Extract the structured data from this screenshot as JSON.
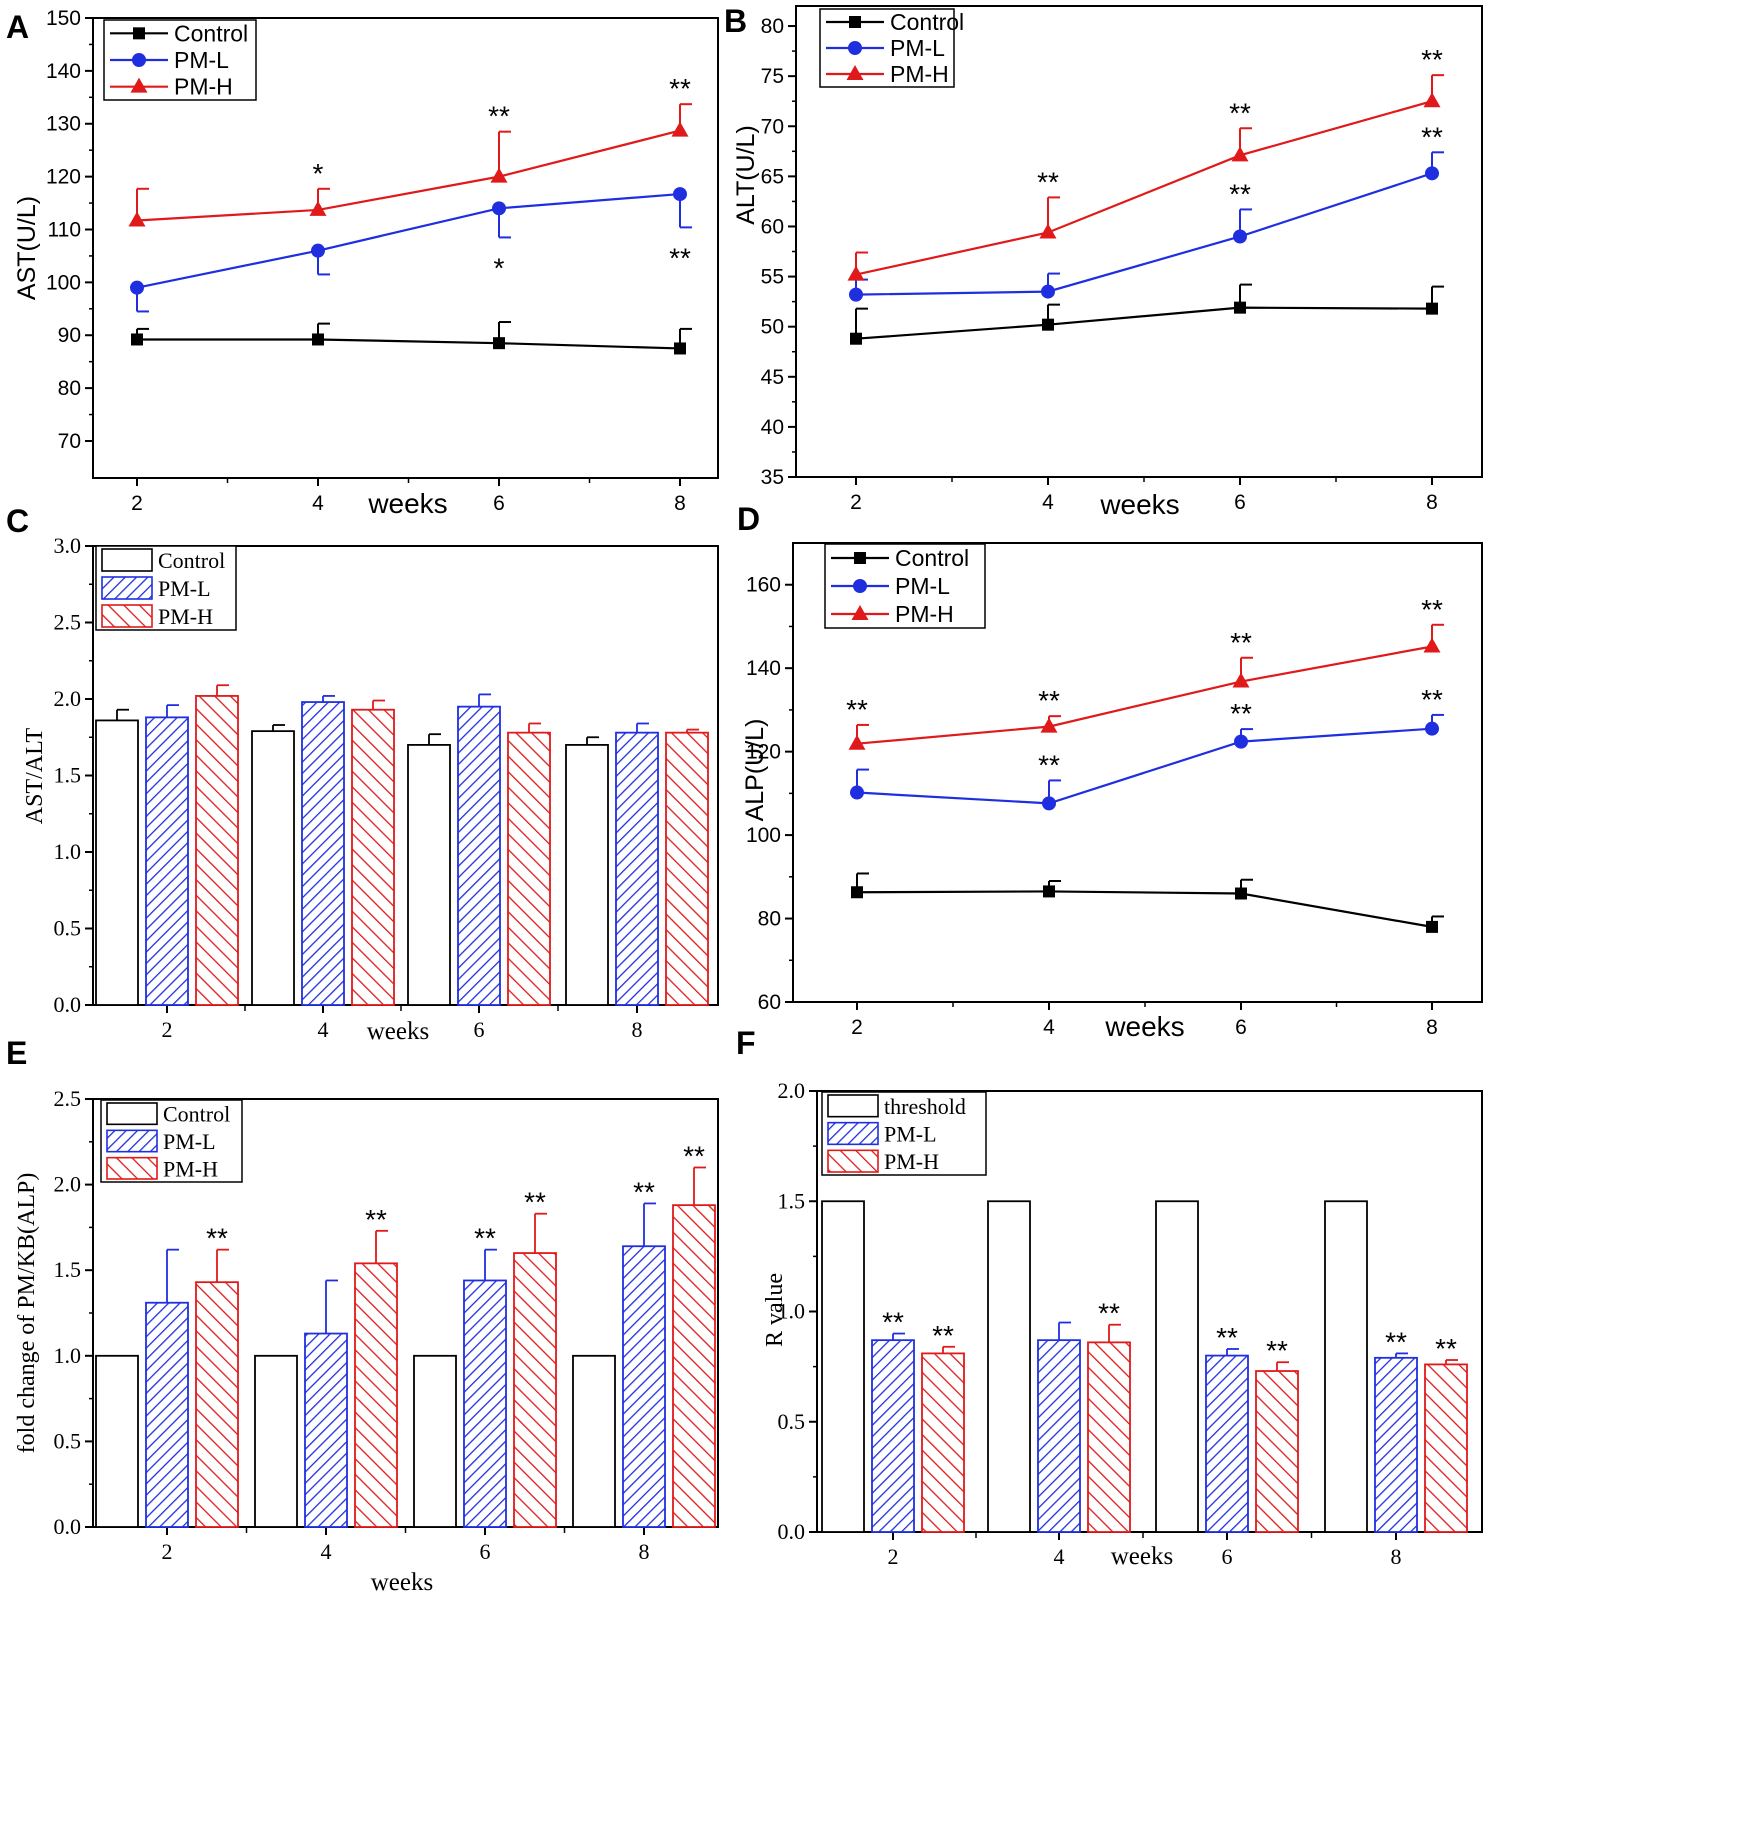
{
  "colors": {
    "control": "#000000",
    "pml": "#1f2fe0",
    "pmh": "#e01a1a"
  },
  "chart_data": [
    {
      "panel_label": "A",
      "type": "line",
      "xlabel": "weeks",
      "ylabel": "AST(U/L)",
      "x": [
        2,
        4,
        6,
        8
      ],
      "xlim": [
        1.5,
        8.5
      ],
      "ylim": [
        63,
        150
      ],
      "yticks": [
        70,
        80,
        90,
        100,
        110,
        120,
        130,
        140,
        150
      ],
      "ytick_labels": [
        "70",
        "80",
        "90",
        "100",
        "110",
        "120",
        "130",
        "140",
        "150"
      ],
      "xtick_labels": [
        "2",
        "4",
        "6",
        "8"
      ],
      "legend": [
        "Control",
        "PM-L",
        "PM-H"
      ],
      "series": [
        {
          "name": "Control",
          "marker": "square",
          "values": [
            89.2,
            89.2,
            88.5,
            87.5
          ],
          "errors": [
            2,
            3,
            4,
            3.7
          ],
          "error_dir": [
            "up",
            "up",
            "up",
            "up"
          ],
          "annotations": [
            "",
            "",
            "",
            ""
          ]
        },
        {
          "name": "PM-L",
          "marker": "circle",
          "values": [
            99,
            106,
            114,
            116.7
          ],
          "errors": [
            4.5,
            4.5,
            5.5,
            6.3
          ],
          "error_dir": [
            "down",
            "down",
            "down",
            "down"
          ],
          "annotations": [
            "",
            "",
            "*",
            "**"
          ]
        },
        {
          "name": "PM-H",
          "marker": "triangle",
          "values": [
            111.7,
            113.7,
            120,
            128.7
          ],
          "errors": [
            6,
            4,
            8.5,
            5
          ],
          "error_dir": [
            "up",
            "up",
            "up",
            "up"
          ],
          "annotations": [
            "",
            "*",
            "**",
            "**"
          ]
        }
      ]
    },
    {
      "panel_label": "B",
      "type": "line",
      "xlabel": "weeks",
      "ylabel": "ALT(U/L)",
      "x": [
        2,
        4,
        6,
        8
      ],
      "xlim": [
        1.5,
        8.5
      ],
      "ylim": [
        35,
        82
      ],
      "yticks": [
        35,
        40,
        45,
        50,
        55,
        60,
        65,
        70,
        75,
        80
      ],
      "ytick_labels": [
        "35",
        "40",
        "45",
        "50",
        "55",
        "60",
        "65",
        "70",
        "75",
        "80"
      ],
      "xtick_labels": [
        "2",
        "4",
        "6",
        "8"
      ],
      "legend": [
        "Control",
        "PM-L",
        "PM-H"
      ],
      "series": [
        {
          "name": "Control",
          "marker": "square",
          "values": [
            48.8,
            50.2,
            51.9,
            51.8
          ],
          "errors": [
            3,
            2,
            2.3,
            2.2
          ],
          "error_dir": [
            "up",
            "up",
            "up",
            "up"
          ],
          "annotations": [
            "",
            "",
            "",
            ""
          ]
        },
        {
          "name": "PM-L",
          "marker": "circle",
          "values": [
            53.2,
            53.5,
            59,
            65.3
          ],
          "errors": [
            1.5,
            1.8,
            2.7,
            2.1
          ],
          "error_dir": [
            "up",
            "up",
            "up",
            "up"
          ],
          "annotations": [
            "",
            "",
            "**",
            "**"
          ]
        },
        {
          "name": "PM-H",
          "marker": "triangle",
          "values": [
            55.2,
            59.4,
            67.1,
            72.5
          ],
          "errors": [
            2.2,
            3.5,
            2.7,
            2.6
          ],
          "error_dir": [
            "up",
            "up",
            "up",
            "up"
          ],
          "annotations": [
            "",
            "**",
            "**",
            "**"
          ]
        }
      ]
    },
    {
      "panel_label": "C",
      "type": "bar",
      "xlabel": "weeks",
      "ylabel": "AST/ALT",
      "categories": [
        "2",
        "4",
        "6",
        "8"
      ],
      "ylim": [
        0,
        3.0
      ],
      "yticks": [
        0,
        0.5,
        1.0,
        1.5,
        2.0,
        2.5,
        3.0
      ],
      "ytick_labels": [
        "0.0",
        "0.5",
        "1.0",
        "1.5",
        "2.0",
        "2.5",
        "3.0"
      ],
      "legend": [
        "Control",
        "PM-L",
        "PM-H"
      ],
      "series": [
        {
          "name": "Control",
          "values": [
            1.86,
            1.79,
            1.7,
            1.7
          ],
          "errors": [
            0.07,
            0.04,
            0.07,
            0.05
          ],
          "annotations": [
            "",
            "",
            "",
            ""
          ]
        },
        {
          "name": "PM-L",
          "values": [
            1.88,
            1.98,
            1.95,
            1.78
          ],
          "errors": [
            0.08,
            0.04,
            0.08,
            0.06
          ],
          "annotations": [
            "",
            "",
            "",
            ""
          ]
        },
        {
          "name": "PM-H",
          "values": [
            2.02,
            1.93,
            1.78,
            1.78
          ],
          "errors": [
            0.07,
            0.06,
            0.06,
            0.02
          ],
          "annotations": [
            "",
            "",
            "",
            ""
          ]
        }
      ]
    },
    {
      "panel_label": "D",
      "type": "line",
      "xlabel": "weeks",
      "ylabel": "ALP(U/L)",
      "x": [
        2,
        4,
        6,
        8
      ],
      "xlim": [
        1.5,
        8.5
      ],
      "ylim": [
        60,
        170
      ],
      "yticks": [
        60,
        80,
        100,
        120,
        140,
        160
      ],
      "ytick_labels": [
        "60",
        "80",
        "100",
        "120",
        "140",
        "160"
      ],
      "xtick_labels": [
        "2",
        "4",
        "6",
        "8"
      ],
      "legend": [
        "Control",
        "PM-L",
        "PM-H"
      ],
      "series": [
        {
          "name": "Control",
          "marker": "square",
          "values": [
            86.3,
            86.5,
            86,
            78
          ],
          "errors": [
            4.5,
            2.5,
            3.3,
            2.5
          ],
          "error_dir": [
            "up",
            "up",
            "up",
            "up"
          ],
          "annotations": [
            "",
            "",
            "",
            ""
          ]
        },
        {
          "name": "PM-L",
          "marker": "circle",
          "values": [
            110.2,
            107.6,
            122.4,
            125.5
          ],
          "errors": [
            5.5,
            5.5,
            3,
            3.3
          ],
          "error_dir": [
            "up",
            "up",
            "up",
            "up"
          ],
          "annotations": [
            "",
            "**",
            "**",
            "**"
          ]
        },
        {
          "name": "PM-H",
          "marker": "triangle",
          "values": [
            121.9,
            126,
            136.8,
            145.2
          ],
          "errors": [
            4.5,
            2.5,
            5.7,
            5.2
          ],
          "error_dir": [
            "up",
            "up",
            "up",
            "up"
          ],
          "annotations": [
            "**",
            "**",
            "**",
            "**"
          ]
        }
      ]
    },
    {
      "panel_label": "E",
      "type": "bar",
      "xlabel": "weeks",
      "ylabel": "fold change of PM/KB(ALP)",
      "categories": [
        "2",
        "4",
        "6",
        "8"
      ],
      "ylim": [
        0,
        2.5
      ],
      "yticks": [
        0,
        0.5,
        1.0,
        1.5,
        2.0,
        2.5
      ],
      "ytick_labels": [
        "0.0",
        "0.5",
        "1.0",
        "1.5",
        "2.0",
        "2.5"
      ],
      "legend": [
        "Control",
        "PM-L",
        "PM-H"
      ],
      "series": [
        {
          "name": "Control",
          "values": [
            1.0,
            1.0,
            1.0,
            1.0
          ],
          "errors": [
            0,
            0,
            0,
            0
          ],
          "annotations": [
            "",
            "",
            "",
            ""
          ]
        },
        {
          "name": "PM-L",
          "values": [
            1.31,
            1.13,
            1.44,
            1.64
          ],
          "errors": [
            0.31,
            0.31,
            0.18,
            0.25
          ],
          "annotations": [
            "",
            "",
            "**",
            "**"
          ]
        },
        {
          "name": "PM-H",
          "values": [
            1.43,
            1.54,
            1.6,
            1.88
          ],
          "errors": [
            0.19,
            0.19,
            0.23,
            0.22
          ],
          "annotations": [
            "**",
            "**",
            "**",
            "**"
          ]
        }
      ]
    },
    {
      "panel_label": "F",
      "type": "bar",
      "xlabel": "weeks",
      "ylabel": "R value",
      "categories": [
        "2",
        "4",
        "6",
        "8"
      ],
      "ylim": [
        0,
        2.0
      ],
      "yticks": [
        0,
        0.5,
        1.0,
        1.5,
        2.0
      ],
      "ytick_labels": [
        "0.0",
        "0.5",
        "1.0",
        "1.5",
        "2.0"
      ],
      "legend": [
        "threshold",
        "PM-L",
        "PM-H"
      ],
      "series": [
        {
          "name": "threshold",
          "values": [
            1.5,
            1.5,
            1.5,
            1.5
          ],
          "errors": [
            0,
            0,
            0,
            0
          ],
          "annotations": [
            "",
            "",
            "",
            ""
          ]
        },
        {
          "name": "PM-L",
          "values": [
            0.87,
            0.87,
            0.8,
            0.79
          ],
          "errors": [
            0.03,
            0.08,
            0.03,
            0.02
          ],
          "annotations": [
            "**",
            "",
            "**",
            "**"
          ]
        },
        {
          "name": "PM-H",
          "values": [
            0.81,
            0.86,
            0.73,
            0.76
          ],
          "errors": [
            0.03,
            0.08,
            0.04,
            0.02
          ],
          "annotations": [
            "**",
            "**",
            "**",
            "**"
          ]
        }
      ]
    }
  ]
}
